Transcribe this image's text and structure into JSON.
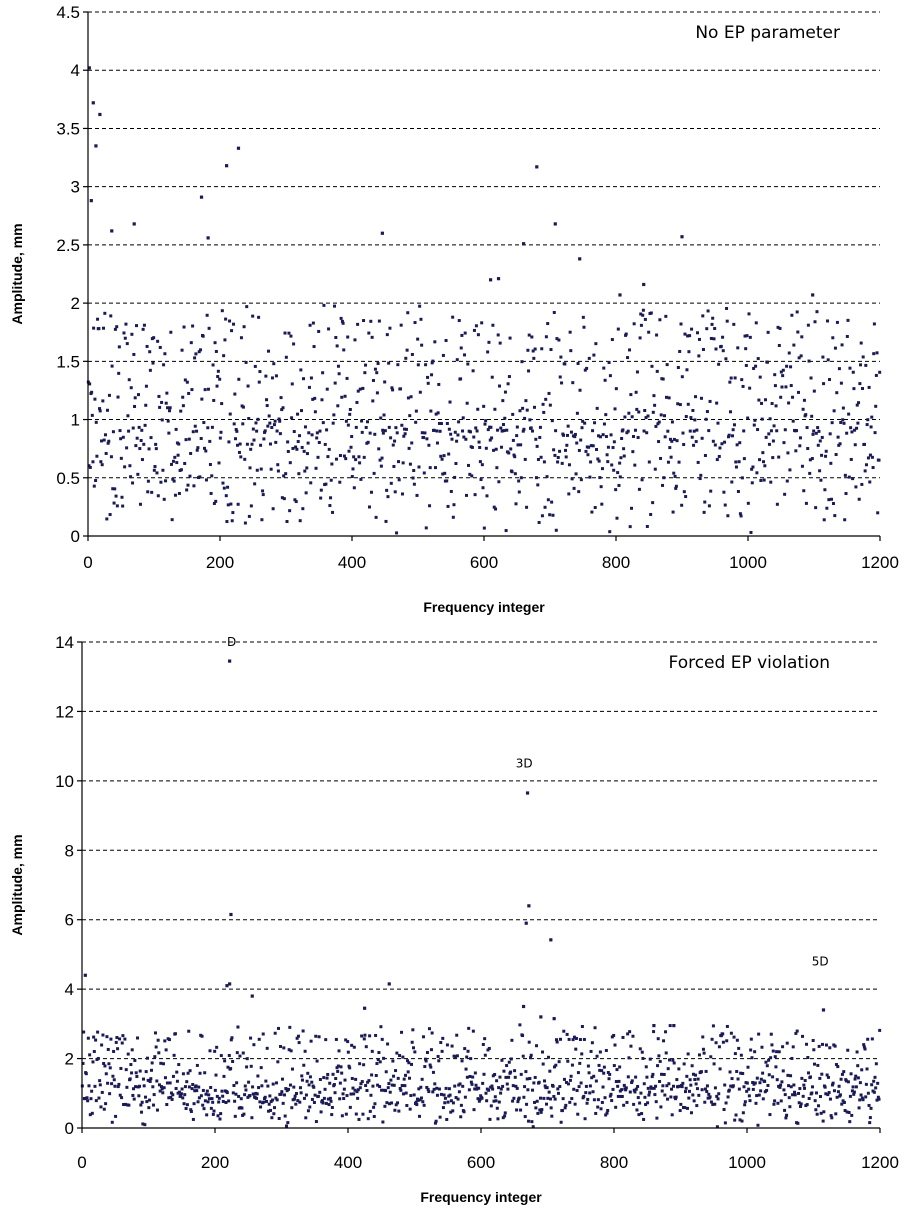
{
  "chart_data": [
    {
      "type": "scatter",
      "title": "No EP parameter",
      "xlabel": "Frequency integer",
      "ylabel": "Amplitude, mm",
      "xlim": [
        0,
        1200
      ],
      "ylim": [
        0,
        4.5
      ],
      "xticks": [
        "0",
        "200",
        "400",
        "600",
        "800",
        "1000",
        "1200"
      ],
      "yticks": [
        "0",
        "0.5",
        "1",
        "1.5",
        "2",
        "2.5",
        "3",
        "3.5",
        "4",
        "4.5"
      ],
      "grid": "horizontal dashed",
      "marker_color": "#1a1a55",
      "series": [
        {
          "notable_points": [
            [
              2,
              4.02
            ],
            [
              8,
              3.72
            ],
            [
              12,
              3.35
            ],
            [
              18,
              3.62
            ],
            [
              5,
              2.88
            ],
            [
              210,
              3.18
            ],
            [
              228,
              3.33
            ],
            [
              172,
              2.91
            ],
            [
              680,
              3.17
            ],
            [
              708,
              2.68
            ],
            [
              70,
              2.68
            ],
            [
              36,
              2.62
            ],
            [
              446,
              2.6
            ],
            [
              900,
              2.57
            ],
            [
              182,
              2.56
            ],
            [
              660,
              2.51
            ],
            [
              745,
              2.38
            ],
            [
              610,
              2.2
            ],
            [
              622,
              2.21
            ],
            [
              842,
              2.16
            ],
            [
              1098,
              2.07
            ],
            [
              806,
              2.07
            ]
          ],
          "background_points": {
            "count": 1200,
            "x_range": [
              0,
              1200
            ],
            "typical_range": [
              0,
              2.0
            ],
            "median": 0.9
          }
        }
      ]
    },
    {
      "type": "scatter",
      "title": "Forced EP violation",
      "xlabel": "Frequency integer",
      "ylabel": "Amplitude, mm",
      "xlim": [
        0,
        1200
      ],
      "ylim": [
        0,
        14
      ],
      "xticks": [
        "0",
        "200",
        "400",
        "600",
        "800",
        "1000",
        "1200"
      ],
      "yticks": [
        "0",
        "2",
        "4",
        "6",
        "8",
        "10",
        "12",
        "14"
      ],
      "grid": "horizontal dashed",
      "marker_color": "#1a1a55",
      "annotations": [
        {
          "text": "D",
          "x": 225,
          "y": 14.0
        },
        {
          "text": "3D",
          "x": 665,
          "y": 10.5
        },
        {
          "text": "5D",
          "x": 1110,
          "y": 4.8
        }
      ],
      "series": [
        {
          "notable_points": [
            [
              222,
              13.45
            ],
            [
              224,
              6.15
            ],
            [
              218,
              4.1
            ],
            [
              222,
              4.15
            ],
            [
              670,
              9.65
            ],
            [
              672,
              6.4
            ],
            [
              668,
              5.9
            ],
            [
              705,
              5.42
            ],
            [
              5,
              4.4
            ],
            [
              462,
              4.15
            ],
            [
              1115,
              3.4
            ],
            [
              425,
              3.45
            ],
            [
              664,
              3.5
            ],
            [
              256,
              3.8
            ],
            [
              690,
              3.2
            ],
            [
              710,
              3.15
            ],
            [
              890,
              2.95
            ],
            [
              860,
              2.95
            ]
          ],
          "background_points": {
            "count": 1200,
            "x_range": [
              0,
              1200
            ],
            "typical_range": [
              0,
              3.0
            ],
            "median": 1.2
          }
        }
      ]
    }
  ]
}
